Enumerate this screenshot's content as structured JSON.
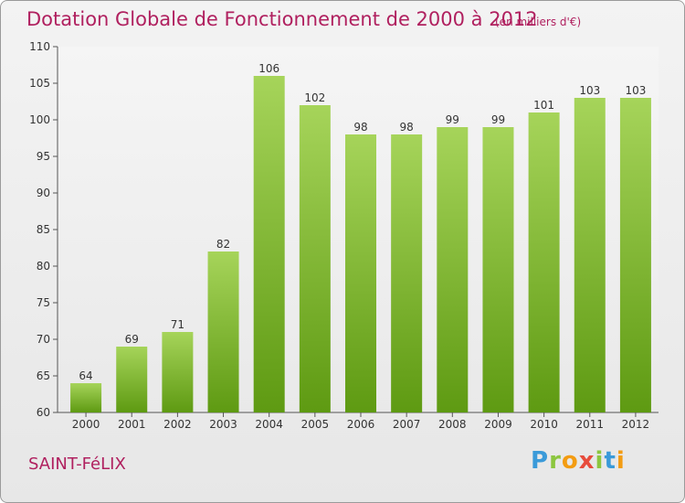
{
  "header": {
    "title": "Dotation Globale de Fonctionnement de 2000 à 2012",
    "unit": "(en milliers d'€)"
  },
  "footer": {
    "commune": "SAINT-FéLIX",
    "logo_letters": [
      "P",
      "r",
      "o",
      "x",
      "i",
      "t",
      "i"
    ],
    "logo_colors": [
      "#3a9ad9",
      "#8cc63f",
      "#f39c12",
      "#e74c3c",
      "#8cc63f",
      "#3a9ad9",
      "#f39c12"
    ]
  },
  "chart_data": {
    "type": "bar",
    "categories": [
      "2000",
      "2001",
      "2002",
      "2003",
      "2004",
      "2005",
      "2006",
      "2007",
      "2008",
      "2009",
      "2010",
      "2011",
      "2012"
    ],
    "values": [
      64,
      69,
      71,
      82,
      106,
      102,
      98,
      98,
      99,
      99,
      101,
      103,
      103
    ],
    "ylim": [
      60,
      110
    ],
    "yticks": [
      60,
      65,
      70,
      75,
      80,
      85,
      90,
      95,
      100,
      105,
      110
    ],
    "grid": false,
    "bar_color_top": "#a6d45a",
    "bar_color_bottom": "#5e9a12"
  }
}
